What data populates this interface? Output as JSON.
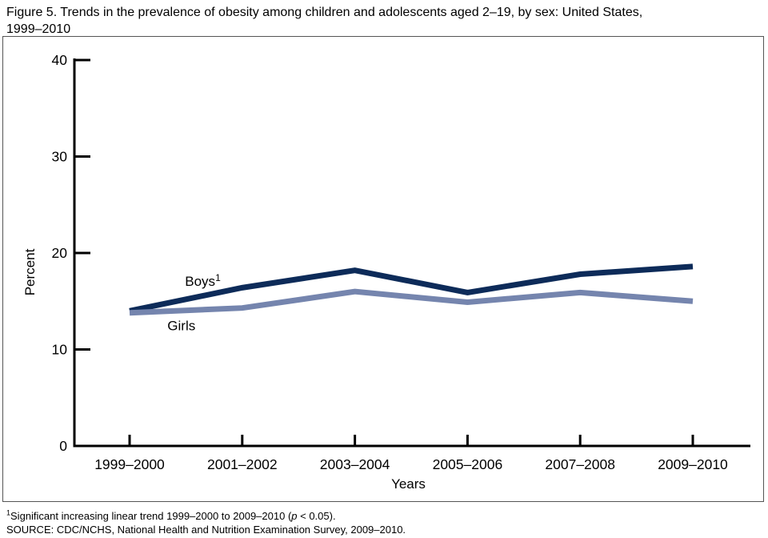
{
  "header": {
    "line1": "Figure 5. Trends in the prevalence of obesity among children and adolescents aged 2–19, by sex: United States,",
    "line2": "1999–2010"
  },
  "chart_data": {
    "type": "line",
    "title": "Figure 5. Trends in the prevalence of obesity among children and adolescents aged 2–19, by sex: United States, 1999–2010",
    "categories": [
      "1999–2000",
      "2001–2002",
      "2003–2004",
      "2005–2006",
      "2007–2008",
      "2009–2010"
    ],
    "series": [
      {
        "name": "Boys",
        "name_superscript": "1",
        "color": "#0d2b59",
        "values": [
          14.0,
          16.4,
          18.2,
          15.9,
          17.8,
          18.6
        ],
        "label_pos": {
          "x_index": 0.65,
          "value": 16.6
        }
      },
      {
        "name": "Girls",
        "name_superscript": "",
        "color": "#7585ae",
        "values": [
          13.8,
          14.3,
          16.0,
          14.9,
          15.9,
          15.0
        ],
        "label_pos": {
          "x_index": 0.46,
          "value": 12.0
        }
      }
    ],
    "xlabel": "Years",
    "ylabel": "Percent",
    "ylim": [
      0,
      40
    ],
    "yticks": [
      0,
      10,
      20,
      30,
      40
    ],
    "grid": false,
    "legend_position": "inline-labels",
    "axis_color": "#000000"
  },
  "footnotes": {
    "sup": "1",
    "line1_pre": "Significant increasing linear trend 1999–2000 to 2009–2010 (",
    "p_italic": "p",
    "line1_post": " < 0.05).",
    "line2": "SOURCE: CDC/NCHS, National Health and Nutrition Examination Survey, 2009–2010."
  }
}
